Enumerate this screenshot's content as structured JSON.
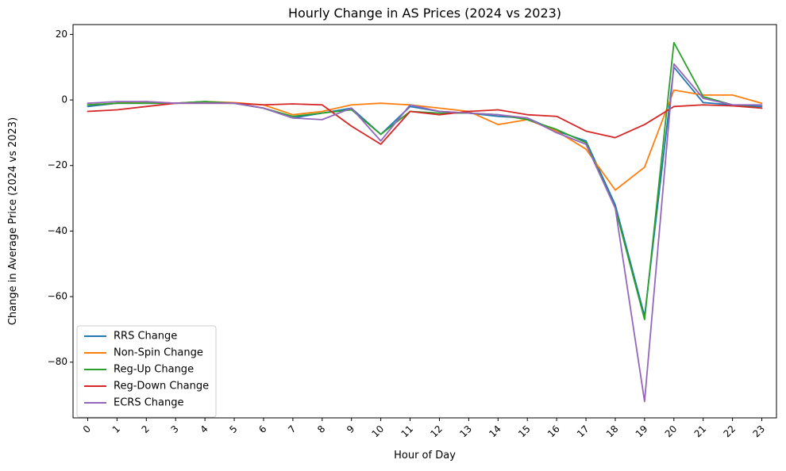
{
  "chart_data": {
    "type": "line",
    "title": "Hourly Change in AS Prices (2024 vs 2023)",
    "xlabel": "Hour of Day",
    "ylabel": "Change in Average Price (2024 vs 2023)",
    "x": [
      0,
      1,
      2,
      3,
      4,
      5,
      6,
      7,
      8,
      9,
      10,
      11,
      12,
      13,
      14,
      15,
      16,
      17,
      18,
      19,
      20,
      21,
      22,
      23
    ],
    "x_tick_labels": [
      "0",
      "1",
      "2",
      "3",
      "4",
      "5",
      "6",
      "7",
      "8",
      "9",
      "10",
      "11",
      "12",
      "13",
      "14",
      "15",
      "16",
      "17",
      "18",
      "19",
      "20",
      "21",
      "22",
      "23"
    ],
    "xlim": [
      -0.5,
      23.5
    ],
    "ylim": [
      -97,
      23
    ],
    "yticks": [
      20,
      0,
      -20,
      -40,
      -60,
      -80
    ],
    "ytick_labels": [
      "20",
      "0",
      "−20",
      "−40",
      "−60",
      "−80"
    ],
    "grid": false,
    "legend_position": "lower-left",
    "series": [
      {
        "name": "RRS Change",
        "color": "#1f77b4",
        "values": [
          -2.0,
          -1.0,
          -1.0,
          -1.0,
          -0.5,
          -1.0,
          -2.5,
          -5.5,
          -4.0,
          -2.5,
          -10.5,
          -2.0,
          -3.5,
          -4.0,
          -5.0,
          -5.5,
          -9.5,
          -12.5,
          -32.0,
          -66.0,
          10.0,
          -0.8,
          -1.5,
          -2.0
        ]
      },
      {
        "name": "Non-Spin Change",
        "color": "#ff7f0e",
        "values": [
          -1.5,
          -1.0,
          -0.5,
          -1.0,
          -0.5,
          -0.8,
          -1.5,
          -4.5,
          -3.5,
          -1.5,
          -1.0,
          -1.5,
          -2.5,
          -3.5,
          -7.5,
          -6.0,
          -9.5,
          -15.0,
          -27.5,
          -20.5,
          3.0,
          1.5,
          1.5,
          -1.0
        ]
      },
      {
        "name": "Reg-Up Change",
        "color": "#2ca02c",
        "values": [
          -1.5,
          -1.0,
          -1.0,
          -1.0,
          -0.5,
          -1.0,
          -2.5,
          -5.0,
          -4.0,
          -3.0,
          -10.5,
          -3.5,
          -4.0,
          -4.0,
          -4.5,
          -6.0,
          -9.0,
          -13.0,
          -33.0,
          -67.0,
          17.5,
          1.0,
          -1.5,
          -2.5
        ]
      },
      {
        "name": "Reg-Down Change",
        "color": "#d62728",
        "values": [
          -3.5,
          -3.0,
          -2.0,
          -1.0,
          -1.0,
          -1.0,
          -1.5,
          -1.2,
          -1.5,
          -8.0,
          -13.5,
          -3.5,
          -4.5,
          -3.5,
          -3.0,
          -4.5,
          -5.0,
          -9.5,
          -11.5,
          -7.5,
          -2.0,
          -1.5,
          -1.8,
          -2.5
        ]
      },
      {
        "name": "ECRS Change",
        "color": "#9467bd",
        "values": [
          -1.0,
          -0.5,
          -0.5,
          -1.0,
          -1.0,
          -1.0,
          -2.5,
          -5.5,
          -6.0,
          -2.5,
          -12.5,
          -1.5,
          -3.5,
          -4.0,
          -4.5,
          -5.5,
          -10.0,
          -13.5,
          -33.0,
          -92.0,
          11.0,
          0.5,
          -1.5,
          -1.5
        ]
      }
    ]
  }
}
